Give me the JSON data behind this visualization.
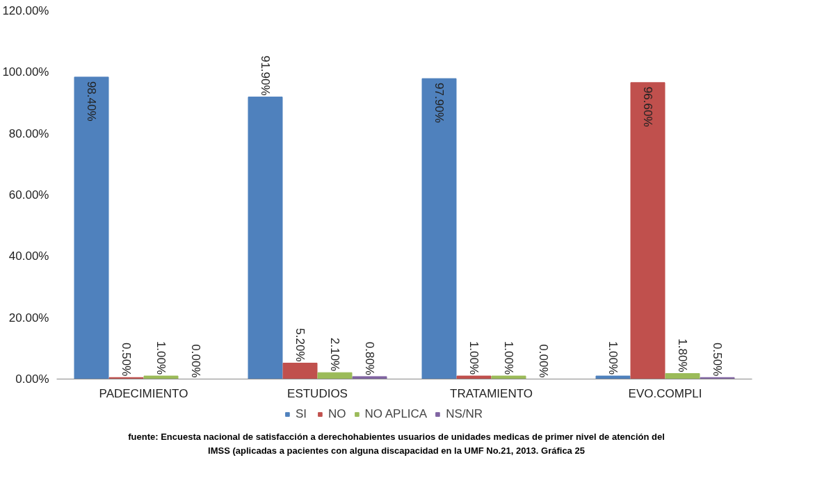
{
  "chart_data": {
    "type": "bar",
    "categories": [
      "PADECIMIENTO",
      "ESTUDIOS",
      "TRATAMIENTO",
      "EVO.COMPLI"
    ],
    "series": [
      {
        "name": "SI",
        "color": "#4f81bd",
        "values": [
          98.4,
          91.9,
          97.9,
          1.0
        ],
        "value_labels": [
          "98.40%",
          "91.90%",
          "97.90%",
          "1.00%"
        ]
      },
      {
        "name": "NO",
        "color": "#c0504d",
        "values": [
          0.5,
          5.2,
          1.0,
          96.6
        ],
        "value_labels": [
          "0.50%",
          "5.20%",
          "1.00%",
          "96.60%"
        ]
      },
      {
        "name": "NO APLICA",
        "color": "#9bbb59",
        "values": [
          1.0,
          2.1,
          1.0,
          1.8
        ],
        "value_labels": [
          "1.00%",
          "2.10%",
          "1.00%",
          "1.80%"
        ]
      },
      {
        "name": "NS/NR",
        "color": "#8064a2",
        "values": [
          0.0,
          0.8,
          0.0,
          0.5
        ],
        "value_labels": [
          "0.00%",
          "0.80%",
          "0.00%",
          "0.50%"
        ]
      }
    ],
    "ylim": [
      0,
      120
    ],
    "yticks": [
      {
        "value": 0,
        "label": "0.00%"
      },
      {
        "value": 20,
        "label": "20.00%"
      },
      {
        "value": 40,
        "label": "40.00%"
      },
      {
        "value": 60,
        "label": "60.00%"
      },
      {
        "value": 80,
        "label": "80.00%"
      },
      {
        "value": 100,
        "label": "100.00%"
      },
      {
        "value": 120,
        "label": "120.00%"
      }
    ],
    "legend": "bottom",
    "annotations": [
      "fuente: Encuesta nacional de satisfacción a derechohabientes usuarios de unidades medicas de primer nivel de atención del",
      "IMSS (aplicadas a pacientes con alguna discapacidad en la UMF No.21, 2013. Gráfica 25"
    ]
  }
}
